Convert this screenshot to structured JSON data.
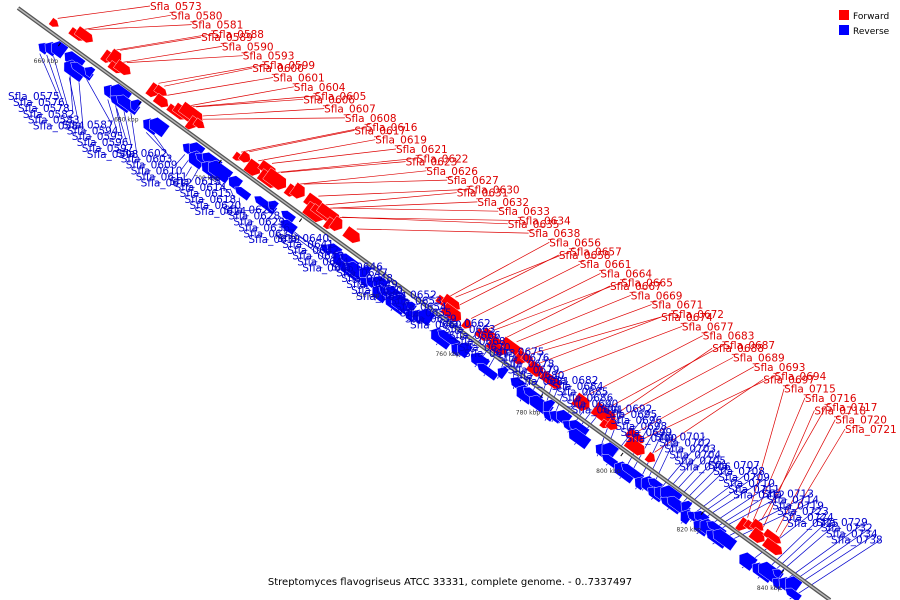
{
  "caption": "Streptomyces flavogriseus ATCC 33331, complete genome. - 0..7337497",
  "legend": [
    {
      "label": "Forward",
      "color": "#ff0000"
    },
    {
      "label": "Reverse",
      "color": "#0000ff"
    }
  ],
  "strand_colors": {
    "forward": "#ff0000",
    "reverse": "#0000ff",
    "forward_line": "#dd0000",
    "reverse_line": "#0000cc",
    "backbone": "#808080"
  },
  "ticks": [
    "660 kbp",
    "680 kbp",
    "700 kbp",
    "720 kbp",
    "740 kbp",
    "760 kbp",
    "780 kbp",
    "800 kbp",
    "820 kbp",
    "840 kbp"
  ],
  "genes": [
    {
      "name": "Sfla_0573",
      "strand": "forward"
    },
    {
      "name": "Sfla_0575",
      "strand": "reverse"
    },
    {
      "name": "Sfla_0576",
      "strand": "reverse"
    },
    {
      "name": "Sfla_0578",
      "strand": "reverse"
    },
    {
      "name": "Sfla_0580",
      "strand": "forward"
    },
    {
      "name": "Sfla_0581",
      "strand": "forward"
    },
    {
      "name": "Sfla_0582",
      "strand": "reverse"
    },
    {
      "name": "Sfla_0583",
      "strand": "reverse"
    },
    {
      "name": "Sfla_0584",
      "strand": "reverse"
    },
    {
      "name": "Sfla_0587",
      "strand": "reverse"
    },
    {
      "name": "Sfla_0588",
      "strand": "forward"
    },
    {
      "name": "Sfla_0589",
      "strand": "forward"
    },
    {
      "name": "Sfla_0590",
      "strand": "forward"
    },
    {
      "name": "Sfla_0593",
      "strand": "forward"
    },
    {
      "name": "Sfla_0594",
      "strand": "reverse"
    },
    {
      "name": "Sfla_0595",
      "strand": "reverse"
    },
    {
      "name": "Sfla_0596",
      "strand": "reverse"
    },
    {
      "name": "Sfla_0597",
      "strand": "reverse"
    },
    {
      "name": "Sfla_0598",
      "strand": "reverse"
    },
    {
      "name": "Sfla_0599",
      "strand": "forward"
    },
    {
      "name": "Sfla_0600",
      "strand": "forward"
    },
    {
      "name": "Sfla_0601",
      "strand": "forward"
    },
    {
      "name": "Sfla_0602",
      "strand": "reverse"
    },
    {
      "name": "Sfla_0603",
      "strand": "reverse"
    },
    {
      "name": "Sfla_0604",
      "strand": "forward"
    },
    {
      "name": "Sfla_0605",
      "strand": "forward"
    },
    {
      "name": "Sfla_0606",
      "strand": "forward"
    },
    {
      "name": "Sfla_0607",
      "strand": "forward"
    },
    {
      "name": "Sfla_0608",
      "strand": "forward"
    },
    {
      "name": "Sfla_0609",
      "strand": "reverse"
    },
    {
      "name": "Sfla_0610",
      "strand": "reverse"
    },
    {
      "name": "Sfla_0611",
      "strand": "reverse"
    },
    {
      "name": "Sfla_0612",
      "strand": "reverse"
    },
    {
      "name": "Sfla_0613",
      "strand": "reverse"
    },
    {
      "name": "Sfla_0614",
      "strand": "reverse"
    },
    {
      "name": "Sfla_0615",
      "strand": "reverse"
    },
    {
      "name": "Sfla_0616",
      "strand": "forward"
    },
    {
      "name": "Sfla_0617",
      "strand": "forward"
    },
    {
      "name": "Sfla_0618",
      "strand": "reverse"
    },
    {
      "name": "Sfla_0619",
      "strand": "forward"
    },
    {
      "name": "Sfla_0620",
      "strand": "reverse"
    },
    {
      "name": "Sfla_0621",
      "strand": "forward"
    },
    {
      "name": "Sfla_0622",
      "strand": "forward"
    },
    {
      "name": "Sfla_0623",
      "strand": "forward"
    },
    {
      "name": "Sfla_0624",
      "strand": "reverse"
    },
    {
      "name": "Sfla_0625",
      "strand": "reverse"
    },
    {
      "name": "Sfla_0626",
      "strand": "forward"
    },
    {
      "name": "Sfla_0627",
      "strand": "forward"
    },
    {
      "name": "Sfla_0628",
      "strand": "reverse"
    },
    {
      "name": "Sfla_0629",
      "strand": "reverse"
    },
    {
      "name": "Sfla_0630",
      "strand": "forward"
    },
    {
      "name": "Sfla_0631",
      "strand": "forward"
    },
    {
      "name": "Sfla_0632",
      "strand": "forward"
    },
    {
      "name": "Sfla_0633",
      "strand": "forward"
    },
    {
      "name": "Sfla_0634",
      "strand": "forward"
    },
    {
      "name": "Sfla_0635",
      "strand": "forward"
    },
    {
      "name": "Sfla_0636",
      "strand": "reverse"
    },
    {
      "name": "Sfla_0637",
      "strand": "reverse"
    },
    {
      "name": "Sfla_0638",
      "strand": "forward"
    },
    {
      "name": "Sfla_0639",
      "strand": "reverse"
    },
    {
      "name": "Sfla_0640",
      "strand": "reverse"
    },
    {
      "name": "Sfla_0641",
      "strand": "reverse"
    },
    {
      "name": "Sfla_0642",
      "strand": "reverse"
    },
    {
      "name": "Sfla_0643",
      "strand": "reverse"
    },
    {
      "name": "Sfla_0644",
      "strand": "reverse"
    },
    {
      "name": "Sfla_0645",
      "strand": "reverse"
    },
    {
      "name": "Sfla_0646",
      "strand": "reverse"
    },
    {
      "name": "Sfla_0647",
      "strand": "reverse"
    },
    {
      "name": "Sfla_0648",
      "strand": "reverse"
    },
    {
      "name": "Sfla_0649",
      "strand": "reverse"
    },
    {
      "name": "Sfla_0650",
      "strand": "reverse"
    },
    {
      "name": "Sfla_0651",
      "strand": "reverse"
    },
    {
      "name": "Sfla_0652",
      "strand": "reverse"
    },
    {
      "name": "Sfla_0653",
      "strand": "reverse"
    },
    {
      "name": "Sfla_0654",
      "strand": "reverse"
    },
    {
      "name": "Sfla_0655",
      "strand": "reverse"
    },
    {
      "name": "Sfla_0656",
      "strand": "forward"
    },
    {
      "name": "Sfla_0657",
      "strand": "forward"
    },
    {
      "name": "Sfla_0658",
      "strand": "forward"
    },
    {
      "name": "Sfla_0659",
      "strand": "reverse"
    },
    {
      "name": "Sfla_0660",
      "strand": "reverse"
    },
    {
      "name": "Sfla_0661",
      "strand": "forward"
    },
    {
      "name": "Sfla_0662",
      "strand": "reverse"
    },
    {
      "name": "Sfla_0663",
      "strand": "reverse"
    },
    {
      "name": "Sfla_0664",
      "strand": "forward"
    },
    {
      "name": "Sfla_0665",
      "strand": "forward"
    },
    {
      "name": "Sfla_0666",
      "strand": "reverse"
    },
    {
      "name": "Sfla_0667",
      "strand": "forward"
    },
    {
      "name": "Sfla_0668",
      "strand": "reverse"
    },
    {
      "name": "Sfla_0669",
      "strand": "forward"
    },
    {
      "name": "Sfla_0670",
      "strand": "reverse"
    },
    {
      "name": "Sfla_0671",
      "strand": "forward"
    },
    {
      "name": "Sfla_0672",
      "strand": "forward"
    },
    {
      "name": "Sfla_0673",
      "strand": "reverse"
    },
    {
      "name": "Sfla_0674",
      "strand": "forward"
    },
    {
      "name": "Sfla_0675",
      "strand": "reverse"
    },
    {
      "name": "Sfla_0676",
      "strand": "reverse"
    },
    {
      "name": "Sfla_0677",
      "strand": "forward"
    },
    {
      "name": "Sfla_0678",
      "strand": "reverse"
    },
    {
      "name": "Sfla_0679",
      "strand": "reverse"
    },
    {
      "name": "Sfla_0680",
      "strand": "reverse"
    },
    {
      "name": "Sfla_0681",
      "strand": "reverse"
    },
    {
      "name": "Sfla_0682",
      "strand": "reverse"
    },
    {
      "name": "Sfla_0683",
      "strand": "forward"
    },
    {
      "name": "Sfla_0684",
      "strand": "reverse"
    },
    {
      "name": "Sfla_0685",
      "strand": "reverse"
    },
    {
      "name": "Sfla_0686",
      "strand": "reverse"
    },
    {
      "name": "Sfla_0687",
      "strand": "forward"
    },
    {
      "name": "Sfla_0688",
      "strand": "forward"
    },
    {
      "name": "Sfla_0689",
      "strand": "forward"
    },
    {
      "name": "Sfla_0690",
      "strand": "reverse"
    },
    {
      "name": "Sfla_0691",
      "strand": "reverse"
    },
    {
      "name": "Sfla_0692",
      "strand": "reverse"
    },
    {
      "name": "Sfla_0693",
      "strand": "forward"
    },
    {
      "name": "Sfla_0694",
      "strand": "forward"
    },
    {
      "name": "Sfla_0695",
      "strand": "reverse"
    },
    {
      "name": "Sfla_0696",
      "strand": "reverse"
    },
    {
      "name": "Sfla_0697",
      "strand": "forward"
    },
    {
      "name": "Sfla_0698",
      "strand": "reverse"
    },
    {
      "name": "Sfla_0699",
      "strand": "reverse"
    },
    {
      "name": "Sfla_0700",
      "strand": "reverse"
    },
    {
      "name": "Sfla_0701",
      "strand": "reverse"
    },
    {
      "name": "Sfla_0702",
      "strand": "reverse"
    },
    {
      "name": "Sfla_0703",
      "strand": "reverse"
    },
    {
      "name": "Sfla_0704",
      "strand": "reverse"
    },
    {
      "name": "Sfla_0705",
      "strand": "reverse"
    },
    {
      "name": "Sfla_0706",
      "strand": "reverse"
    },
    {
      "name": "Sfla_0707",
      "strand": "reverse"
    },
    {
      "name": "Sfla_0708",
      "strand": "reverse"
    },
    {
      "name": "Sfla_0709",
      "strand": "reverse"
    },
    {
      "name": "Sfla_0710",
      "strand": "reverse"
    },
    {
      "name": "Sfla_0711",
      "strand": "reverse"
    },
    {
      "name": "Sfla_0712",
      "strand": "reverse"
    },
    {
      "name": "Sfla_0713",
      "strand": "reverse"
    },
    {
      "name": "Sfla_0714",
      "strand": "reverse"
    },
    {
      "name": "Sfla_0715",
      "strand": "forward"
    },
    {
      "name": "Sfla_0716",
      "strand": "forward"
    },
    {
      "name": "Sfla_0717",
      "strand": "forward"
    },
    {
      "name": "Sfla_0718",
      "strand": "forward"
    },
    {
      "name": "Sfla_0719",
      "strand": "reverse"
    },
    {
      "name": "Sfla_0720",
      "strand": "forward"
    },
    {
      "name": "Sfla_0721",
      "strand": "forward"
    },
    {
      "name": "Sfla_0723",
      "strand": "reverse"
    },
    {
      "name": "Sfla_0724",
      "strand": "reverse"
    },
    {
      "name": "Sfla_0725",
      "strand": "reverse"
    },
    {
      "name": "Sfla_0729",
      "strand": "reverse"
    },
    {
      "name": "Sfla_0732",
      "strand": "reverse"
    },
    {
      "name": "Sfla_0734",
      "strand": "reverse"
    },
    {
      "name": "Sfla_0738",
      "strand": "reverse"
    }
  ]
}
